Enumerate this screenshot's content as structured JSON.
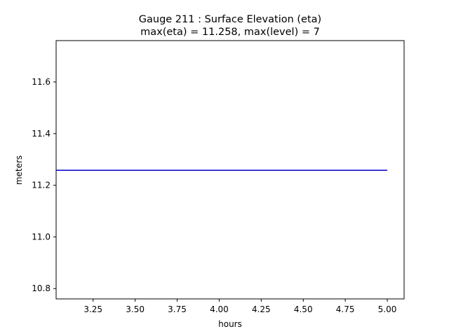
{
  "chart_data": {
    "type": "line",
    "title": "Gauge 211 : Surface Elevation (eta)",
    "subtitle": "max(eta) =  11.258,    max(level) = 7",
    "xlabel": "hours",
    "ylabel": "meters",
    "xlim": [
      3.03,
      5.1
    ],
    "ylim": [
      10.76,
      11.76
    ],
    "xticks": [
      3.25,
      3.5,
      3.75,
      4.0,
      4.25,
      4.5,
      4.75,
      5.0
    ],
    "xtick_labels": [
      "3.25",
      "3.50",
      "3.75",
      "4.00",
      "4.25",
      "4.50",
      "4.75",
      "5.00"
    ],
    "yticks": [
      10.8,
      11.0,
      11.2,
      11.4,
      11.6
    ],
    "ytick_labels": [
      "10.8",
      "11.0",
      "11.2",
      "11.4",
      "11.6"
    ],
    "grid": false,
    "series": [
      {
        "color": "#0000cc",
        "x": [
          3.03,
          5.0
        ],
        "y": [
          11.258,
          11.258
        ]
      }
    ]
  }
}
